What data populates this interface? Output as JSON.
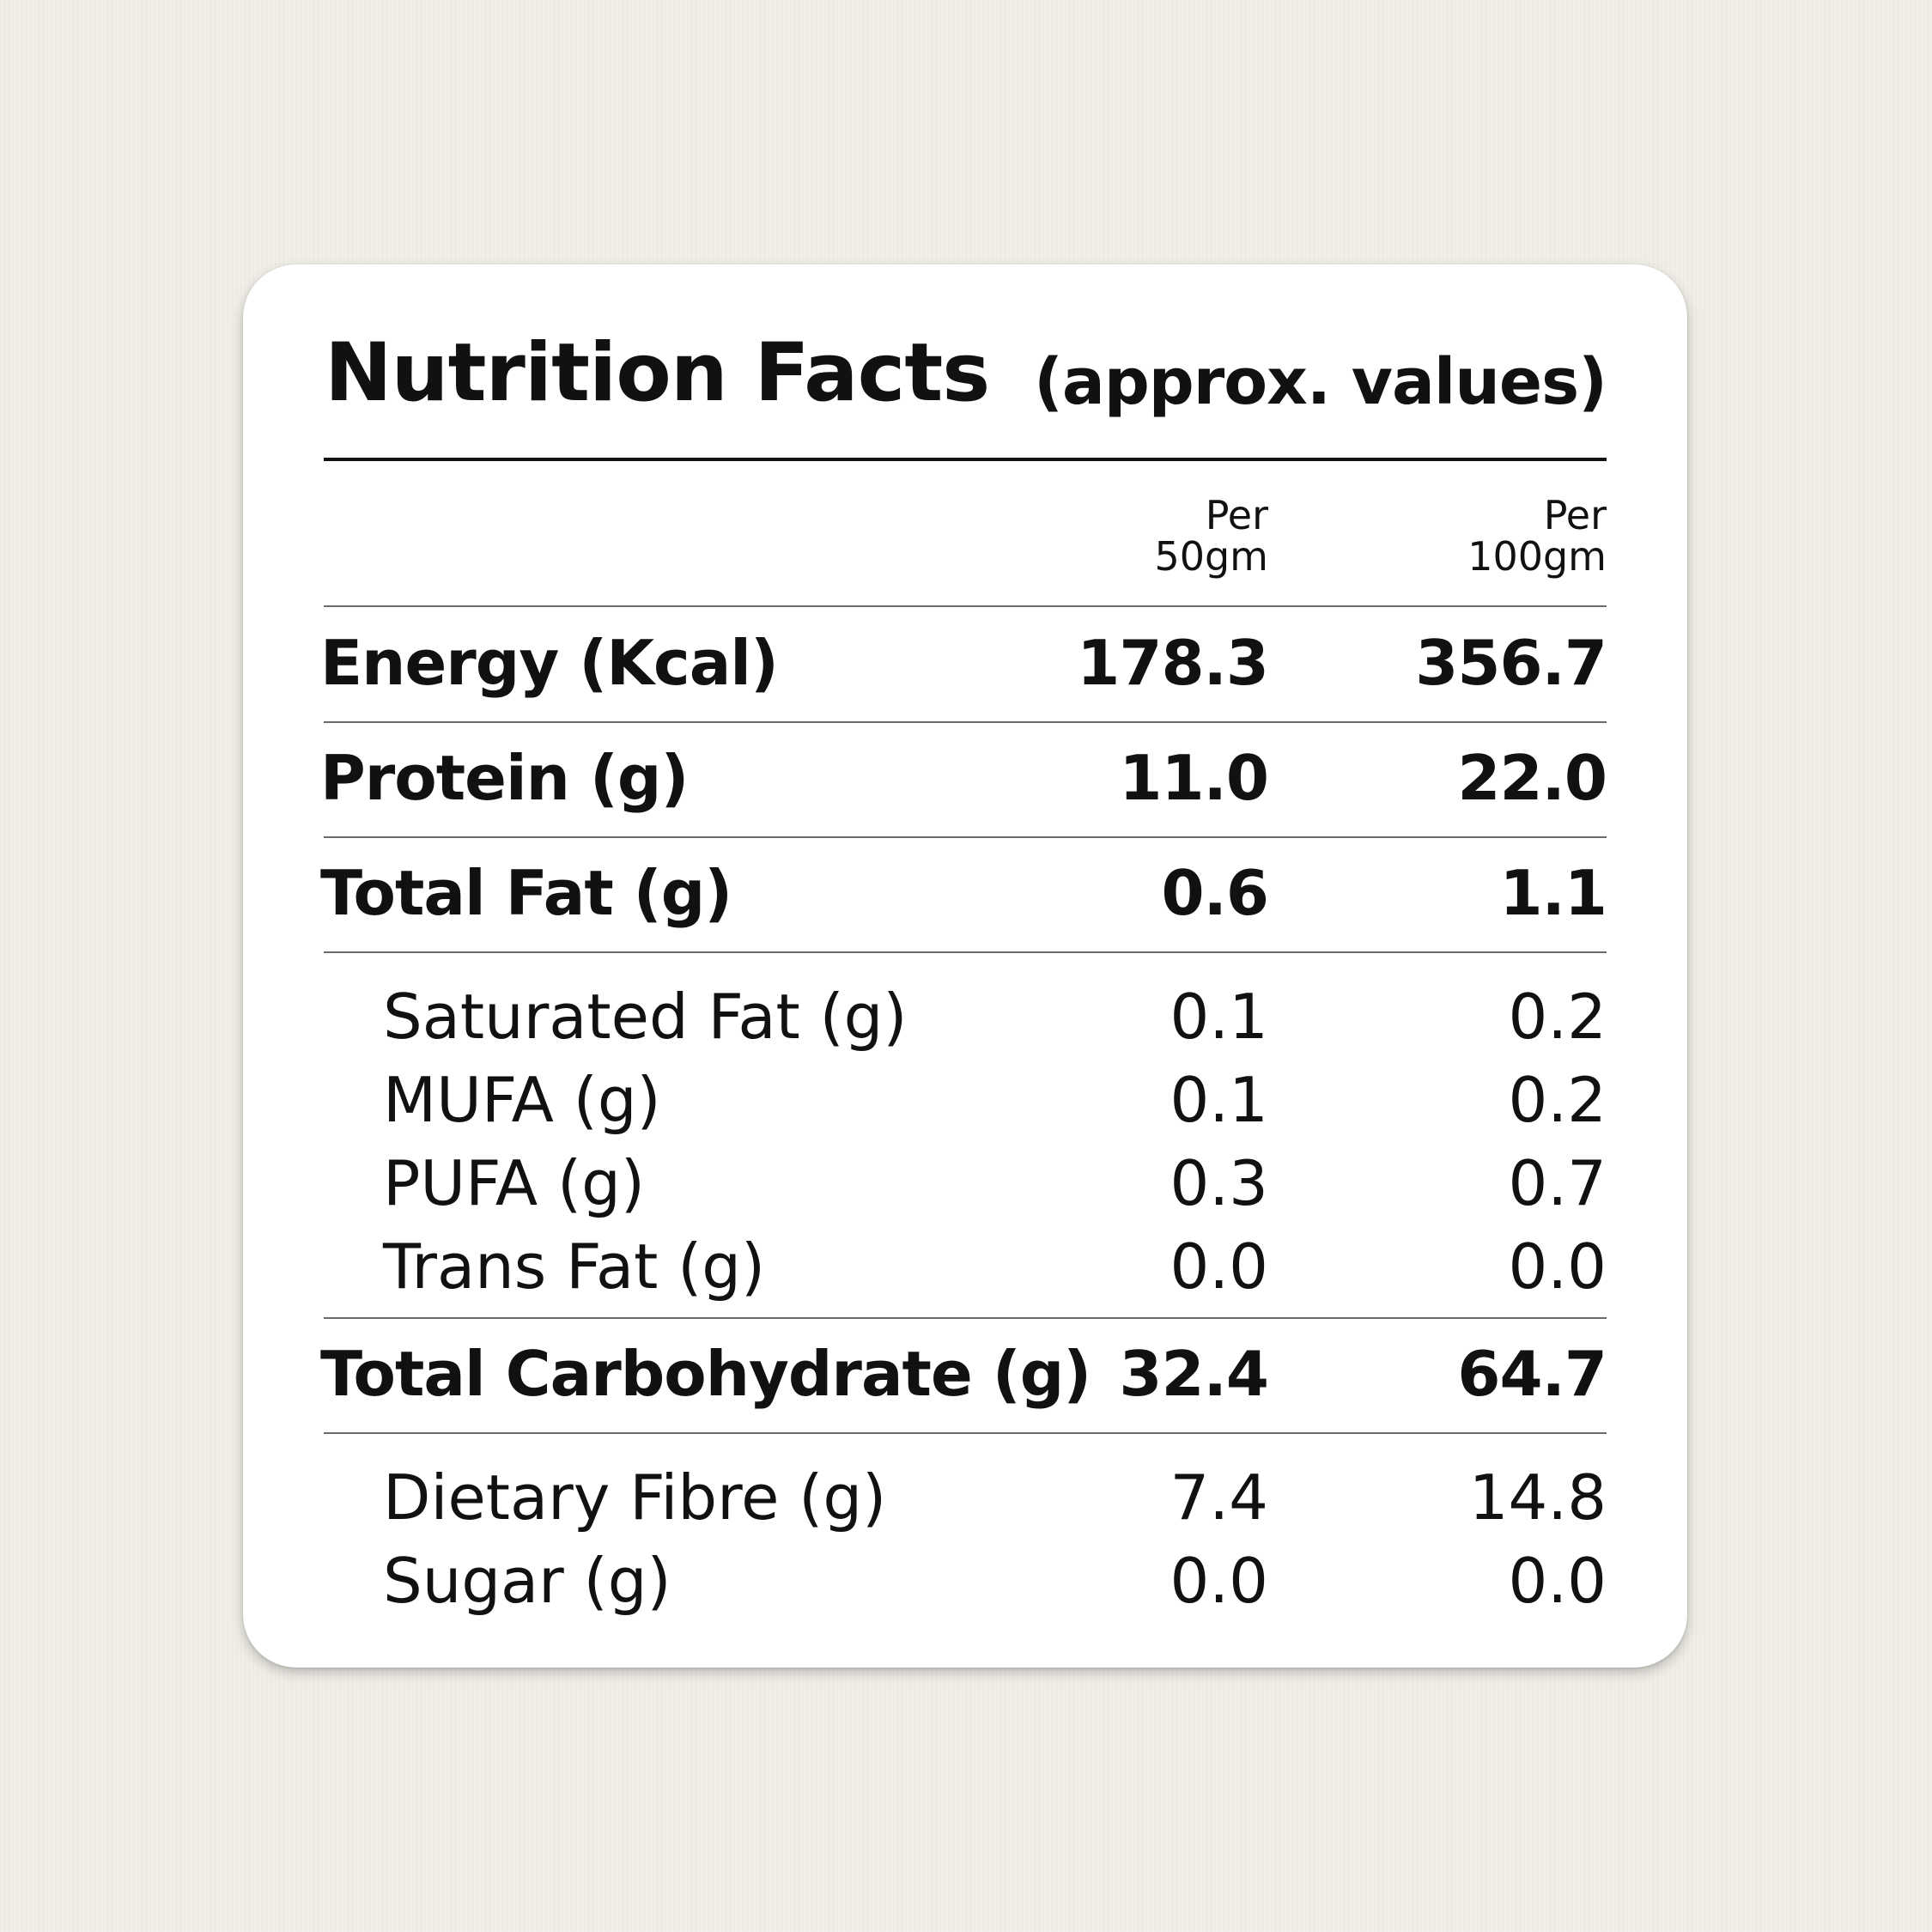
{
  "title": "Nutrition Facts",
  "subtitle": "(approx. values)",
  "columns": [
    {
      "line1": "Per",
      "line2": "50gm"
    },
    {
      "line1": "Per",
      "line2": "100gm"
    }
  ],
  "rows": [
    {
      "label": "Energy (Kcal)",
      "per50": "178.3",
      "per100": "356.7"
    },
    {
      "label": "Protein (g)",
      "per50": "11.0",
      "per100": "22.0"
    },
    {
      "label": "Total Fat (g)",
      "per50": "0.6",
      "per100": "1.1"
    },
    {
      "label": "Saturated Fat (g)",
      "per50": "0.1",
      "per100": "0.2"
    },
    {
      "label": "MUFA (g)",
      "per50": "0.1",
      "per100": "0.2"
    },
    {
      "label": "PUFA (g)",
      "per50": "0.3",
      "per100": "0.7"
    },
    {
      "label": "Trans Fat (g)",
      "per50": "0.0",
      "per100": "0.0"
    },
    {
      "label": "Total Carbohydrate (g)",
      "per50": "32.4",
      "per100": "64.7"
    },
    {
      "label": "Dietary Fibre (g)",
      "per50": "7.4",
      "per100": "14.8"
    },
    {
      "label": "Sugar (g)",
      "per50": "0.0",
      "per100": "0.0"
    }
  ]
}
